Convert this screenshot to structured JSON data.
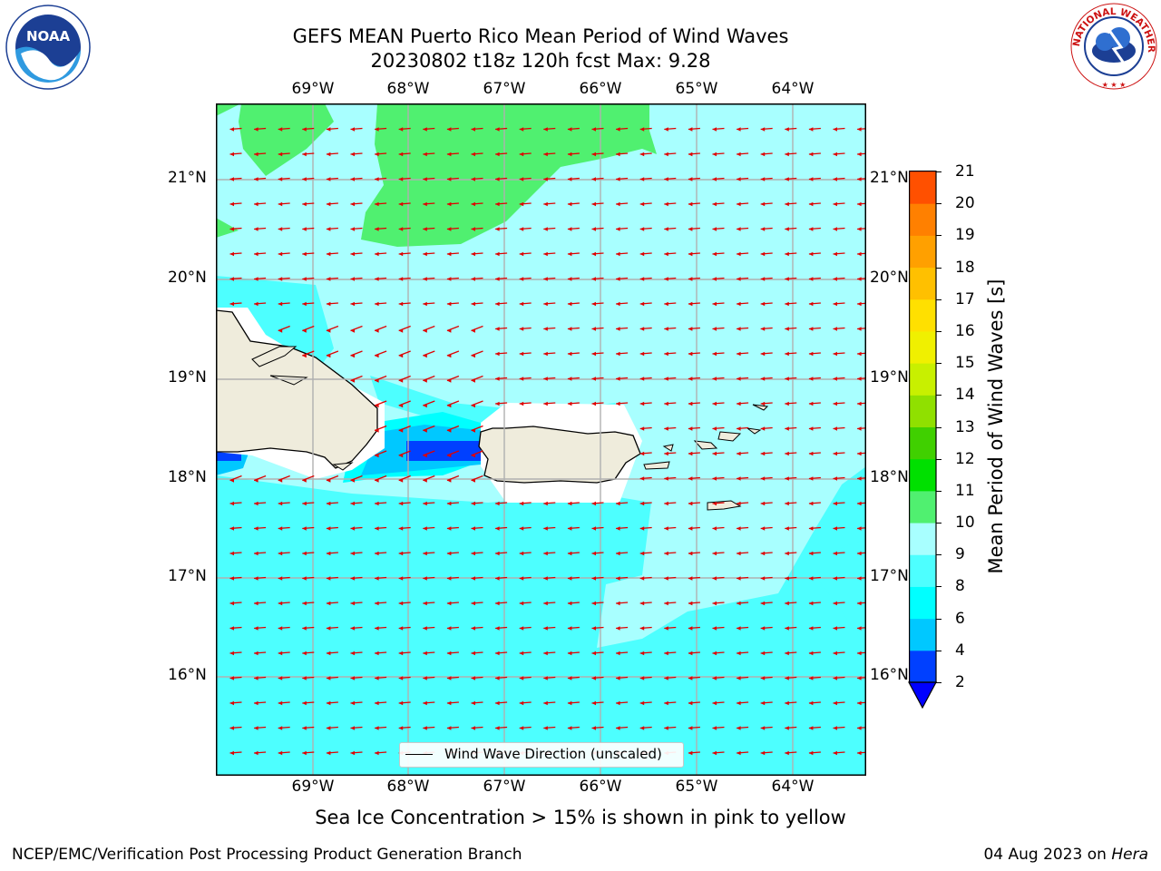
{
  "title": {
    "line1": "GEFS MEAN Puerto Rico Mean Period of Wind Waves",
    "line2": "20230802 t18z 120h fcst   Max: 9.28"
  },
  "map": {
    "lon_ticks": [
      "69°W",
      "68°W",
      "67°W",
      "66°W",
      "65°W",
      "64°W"
    ],
    "lat_ticks": [
      "21°N",
      "20°N",
      "19°N",
      "18°N",
      "17°N",
      "16°N"
    ],
    "regions": [
      "Hispaniola",
      "Puerto Rico",
      "Virgin Islands",
      "St. Croix"
    ],
    "wind_wave_direction": "westward (east to west)",
    "arrow_color": "#e00000",
    "land_color": "#efecdc"
  },
  "colorbar": {
    "title": "Mean Period of Wind Waves [s]",
    "levels": [
      "2",
      "4",
      "6",
      "8",
      "9",
      "10",
      "11",
      "12",
      "13",
      "14",
      "15",
      "16",
      "17",
      "18",
      "19",
      "20",
      "21"
    ],
    "colors": [
      "#0040ff",
      "#00c8ff",
      "#00ffff",
      "#4dffff",
      "#a8ffff",
      "#50f070",
      "#00e000",
      "#40d000",
      "#90e000",
      "#c8f000",
      "#f0f000",
      "#ffe000",
      "#ffc000",
      "#ffa000",
      "#ff8000",
      "#ff5000",
      "#ff2000",
      "#ff0000"
    ],
    "under_color": "#0000ff"
  },
  "legend": {
    "label": "Wind Wave Direction (unscaled)"
  },
  "note": "Sea Ice Concentration > 15% is shown in pink to yellow",
  "footer": {
    "left": "NCEP/EMC/Verification Post Processing Product Generation Branch",
    "right_date": "04 Aug 2023 on ",
    "right_host": "Hera"
  },
  "logos": {
    "noaa": "NOAA",
    "nws": "NATIONAL WEATHER SERVICE"
  }
}
